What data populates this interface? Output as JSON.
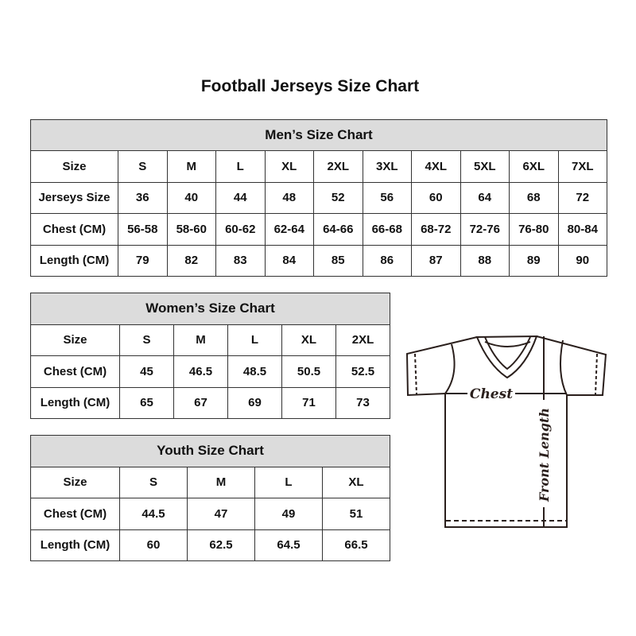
{
  "title": "Football Jerseys Size Chart",
  "men": {
    "heading": "Men’s Size Chart",
    "rows": [
      [
        "Size",
        "S",
        "M",
        "L",
        "XL",
        "2XL",
        "3XL",
        "4XL",
        "5XL",
        "6XL",
        "7XL"
      ],
      [
        "Jerseys Size",
        "36",
        "40",
        "44",
        "48",
        "52",
        "56",
        "60",
        "64",
        "68",
        "72"
      ],
      [
        "Chest (CM)",
        "56-58",
        "58-60",
        "60-62",
        "62-64",
        "64-66",
        "66-68",
        "68-72",
        "72-76",
        "76-80",
        "80-84"
      ],
      [
        "Length (CM)",
        "79",
        "82",
        "83",
        "84",
        "85",
        "86",
        "87",
        "88",
        "89",
        "90"
      ]
    ]
  },
  "women": {
    "heading": "Women’s Size Chart",
    "rows": [
      [
        "Size",
        "S",
        "M",
        "L",
        "XL",
        "2XL"
      ],
      [
        "Chest (CM)",
        "45",
        "46.5",
        "48.5",
        "50.5",
        "52.5"
      ],
      [
        "Length (CM)",
        "65",
        "67",
        "69",
        "71",
        "73"
      ]
    ]
  },
  "youth": {
    "heading": "Youth Size Chart",
    "rows": [
      [
        "Size",
        "S",
        "M",
        "L",
        "XL"
      ],
      [
        "Chest (CM)",
        "44.5",
        "47",
        "49",
        "51"
      ],
      [
        "Length (CM)",
        "60",
        "62.5",
        "64.5",
        "66.5"
      ]
    ]
  },
  "diagram": {
    "chest_label": "Chest",
    "length_label": "Front Length"
  }
}
